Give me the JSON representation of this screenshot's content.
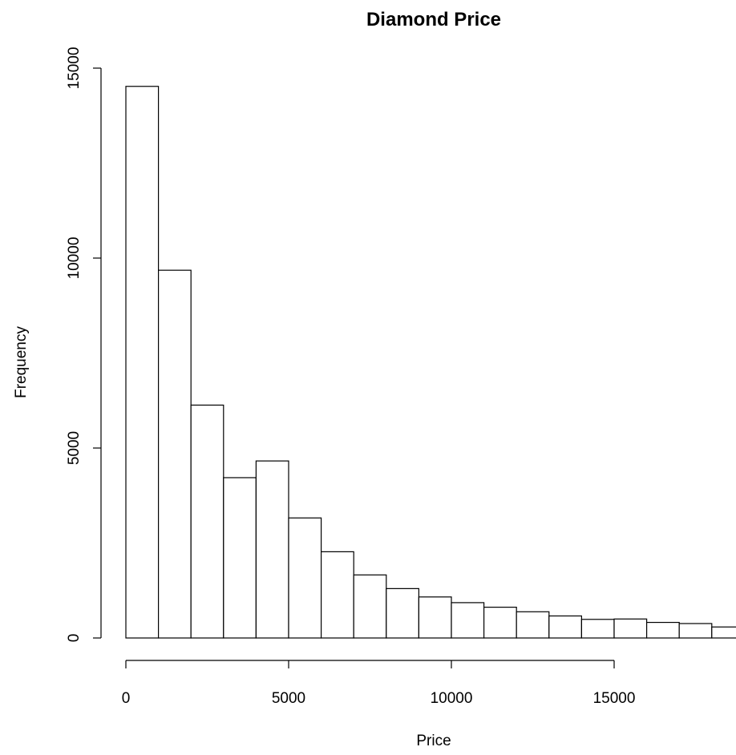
{
  "chart_data": {
    "type": "bar",
    "title": "Diamond Price",
    "xlabel": "Price",
    "ylabel": "Frequency",
    "bin_width": 1000,
    "x": [
      0,
      1000,
      2000,
      3000,
      4000,
      5000,
      6000,
      7000,
      8000,
      9000,
      10000,
      11000,
      12000,
      13000,
      14000,
      15000,
      16000,
      17000,
      18000
    ],
    "values": [
      14520,
      9680,
      6130,
      4220,
      4660,
      3160,
      2270,
      1660,
      1300,
      1080,
      930,
      810,
      690,
      580,
      490,
      500,
      410,
      380,
      290
    ],
    "x_ticks": [
      0,
      5000,
      10000,
      15000
    ],
    "x_tick_labels": [
      "0",
      "5000",
      "10000",
      "15000"
    ],
    "y_ticks": [
      0,
      5000,
      10000,
      15000
    ],
    "y_tick_labels": [
      "0",
      "5000",
      "10000",
      "15000"
    ],
    "xlim": [
      0,
      19000
    ],
    "ylim": [
      0,
      15000
    ],
    "grid": false,
    "legend": "none"
  }
}
